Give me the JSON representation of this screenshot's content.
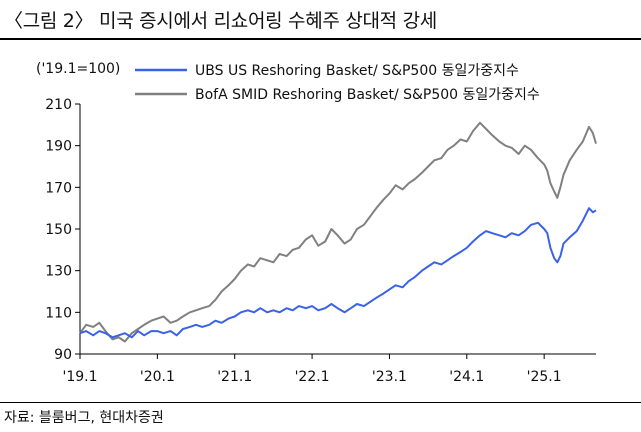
{
  "title": "〈그림 2〉 미국 증시에서 리쇼어링 수혜주 상대적 강세",
  "source": "자료: 블룸버그, 현대차증권",
  "chart_data": {
    "type": "line",
    "unit_note": "('19.1=100)",
    "ylim": [
      90,
      210
    ],
    "yticks": [
      90,
      110,
      130,
      150,
      170,
      190,
      210
    ],
    "x_tick_labels": [
      "'19.1",
      "'20.1",
      "'21.1",
      "'22.1",
      "'23.1",
      "'24.1",
      "'25.1"
    ],
    "x_tick_positions": [
      2019.0,
      2020.0,
      2021.0,
      2022.0,
      2023.0,
      2024.0,
      2025.0
    ],
    "xlim": [
      2019.0,
      2025.67
    ],
    "grid": false,
    "legend_placement": "top",
    "series": [
      {
        "name": "UBS US Reshoring Basket/ S&P500 동일가중지수",
        "color": "#3a62e8",
        "points": [
          [
            2019.0,
            100
          ],
          [
            2019.08,
            101
          ],
          [
            2019.17,
            99
          ],
          [
            2019.25,
            101
          ],
          [
            2019.33,
            100
          ],
          [
            2019.42,
            98
          ],
          [
            2019.5,
            99
          ],
          [
            2019.58,
            100
          ],
          [
            2019.67,
            98
          ],
          [
            2019.75,
            101
          ],
          [
            2019.83,
            99
          ],
          [
            2019.92,
            101
          ],
          [
            2020.0,
            101
          ],
          [
            2020.08,
            100
          ],
          [
            2020.17,
            101
          ],
          [
            2020.25,
            99
          ],
          [
            2020.33,
            102
          ],
          [
            2020.42,
            103
          ],
          [
            2020.5,
            104
          ],
          [
            2020.58,
            103
          ],
          [
            2020.67,
            104
          ],
          [
            2020.75,
            106
          ],
          [
            2020.83,
            105
          ],
          [
            2020.92,
            107
          ],
          [
            2021.0,
            108
          ],
          [
            2021.08,
            110
          ],
          [
            2021.17,
            111
          ],
          [
            2021.25,
            110
          ],
          [
            2021.33,
            112
          ],
          [
            2021.42,
            110
          ],
          [
            2021.5,
            111
          ],
          [
            2021.58,
            110
          ],
          [
            2021.67,
            112
          ],
          [
            2021.75,
            111
          ],
          [
            2021.83,
            113
          ],
          [
            2021.92,
            112
          ],
          [
            2022.0,
            113
          ],
          [
            2022.08,
            111
          ],
          [
            2022.17,
            112
          ],
          [
            2022.25,
            114
          ],
          [
            2022.33,
            112
          ],
          [
            2022.42,
            110
          ],
          [
            2022.5,
            112
          ],
          [
            2022.58,
            114
          ],
          [
            2022.67,
            113
          ],
          [
            2022.75,
            115
          ],
          [
            2022.83,
            117
          ],
          [
            2022.92,
            119
          ],
          [
            2023.0,
            121
          ],
          [
            2023.08,
            123
          ],
          [
            2023.17,
            122
          ],
          [
            2023.25,
            125
          ],
          [
            2023.33,
            127
          ],
          [
            2023.42,
            130
          ],
          [
            2023.5,
            132
          ],
          [
            2023.58,
            134
          ],
          [
            2023.67,
            133
          ],
          [
            2023.75,
            135
          ],
          [
            2023.83,
            137
          ],
          [
            2023.92,
            139
          ],
          [
            2024.0,
            141
          ],
          [
            2024.08,
            144
          ],
          [
            2024.17,
            147
          ],
          [
            2024.25,
            149
          ],
          [
            2024.33,
            148
          ],
          [
            2024.42,
            147
          ],
          [
            2024.5,
            146
          ],
          [
            2024.58,
            148
          ],
          [
            2024.67,
            147
          ],
          [
            2024.75,
            149
          ],
          [
            2024.83,
            152
          ],
          [
            2024.92,
            153
          ],
          [
            2025.0,
            150
          ],
          [
            2025.04,
            148
          ],
          [
            2025.08,
            141
          ],
          [
            2025.13,
            136
          ],
          [
            2025.17,
            134
          ],
          [
            2025.21,
            137
          ],
          [
            2025.25,
            143
          ],
          [
            2025.33,
            146
          ],
          [
            2025.42,
            149
          ],
          [
            2025.5,
            154
          ],
          [
            2025.58,
            160
          ],
          [
            2025.63,
            158
          ],
          [
            2025.67,
            159
          ]
        ]
      },
      {
        "name": "BofA SMID Reshoring Basket/ S&P500 동일가중지수",
        "color": "#808080",
        "points": [
          [
            2019.0,
            100
          ],
          [
            2019.08,
            104
          ],
          [
            2019.17,
            103
          ],
          [
            2019.25,
            105
          ],
          [
            2019.33,
            101
          ],
          [
            2019.42,
            97
          ],
          [
            2019.5,
            98
          ],
          [
            2019.58,
            96
          ],
          [
            2019.67,
            100
          ],
          [
            2019.75,
            102
          ],
          [
            2019.83,
            104
          ],
          [
            2019.92,
            106
          ],
          [
            2020.0,
            107
          ],
          [
            2020.08,
            108
          ],
          [
            2020.17,
            105
          ],
          [
            2020.25,
            106
          ],
          [
            2020.33,
            108
          ],
          [
            2020.42,
            110
          ],
          [
            2020.5,
            111
          ],
          [
            2020.58,
            112
          ],
          [
            2020.67,
            113
          ],
          [
            2020.75,
            116
          ],
          [
            2020.83,
            120
          ],
          [
            2020.92,
            123
          ],
          [
            2021.0,
            126
          ],
          [
            2021.08,
            130
          ],
          [
            2021.17,
            133
          ],
          [
            2021.25,
            132
          ],
          [
            2021.33,
            136
          ],
          [
            2021.42,
            135
          ],
          [
            2021.5,
            134
          ],
          [
            2021.58,
            138
          ],
          [
            2021.67,
            137
          ],
          [
            2021.75,
            140
          ],
          [
            2021.83,
            141
          ],
          [
            2021.92,
            145
          ],
          [
            2022.0,
            147
          ],
          [
            2022.08,
            142
          ],
          [
            2022.17,
            144
          ],
          [
            2022.25,
            150
          ],
          [
            2022.33,
            147
          ],
          [
            2022.42,
            143
          ],
          [
            2022.5,
            145
          ],
          [
            2022.58,
            150
          ],
          [
            2022.67,
            152
          ],
          [
            2022.75,
            156
          ],
          [
            2022.83,
            160
          ],
          [
            2022.92,
            164
          ],
          [
            2023.0,
            167
          ],
          [
            2023.08,
            171
          ],
          [
            2023.17,
            169
          ],
          [
            2023.25,
            172
          ],
          [
            2023.33,
            174
          ],
          [
            2023.42,
            177
          ],
          [
            2023.5,
            180
          ],
          [
            2023.58,
            183
          ],
          [
            2023.67,
            184
          ],
          [
            2023.75,
            188
          ],
          [
            2023.83,
            190
          ],
          [
            2023.92,
            193
          ],
          [
            2024.0,
            192
          ],
          [
            2024.08,
            197
          ],
          [
            2024.17,
            201
          ],
          [
            2024.25,
            198
          ],
          [
            2024.33,
            195
          ],
          [
            2024.42,
            192
          ],
          [
            2024.5,
            190
          ],
          [
            2024.58,
            189
          ],
          [
            2024.67,
            186
          ],
          [
            2024.75,
            190
          ],
          [
            2024.83,
            188
          ],
          [
            2024.92,
            184
          ],
          [
            2025.0,
            181
          ],
          [
            2025.04,
            178
          ],
          [
            2025.08,
            172
          ],
          [
            2025.13,
            168
          ],
          [
            2025.17,
            165
          ],
          [
            2025.21,
            170
          ],
          [
            2025.25,
            176
          ],
          [
            2025.33,
            183
          ],
          [
            2025.42,
            188
          ],
          [
            2025.5,
            192
          ],
          [
            2025.58,
            199
          ],
          [
            2025.63,
            196
          ],
          [
            2025.67,
            191
          ]
        ]
      }
    ]
  }
}
